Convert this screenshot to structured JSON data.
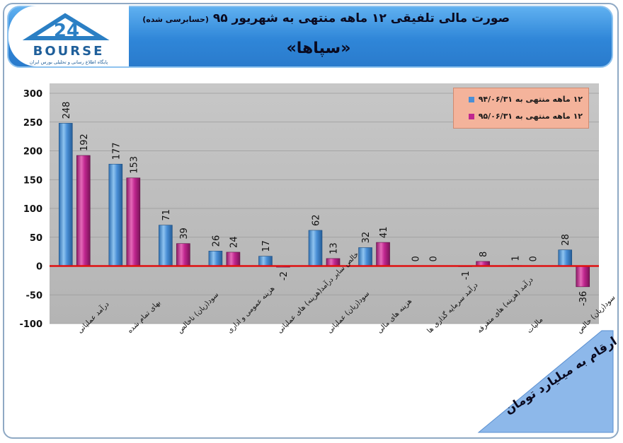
{
  "header": {
    "title": "صورت مالی تلفیقی ۱۲ ماهه منتهی به شهریور ۹۵",
    "title_note": "(حسابرسی شده)",
    "company": "«سپاها»",
    "logo_text": "BOURSE",
    "logo_subtitle": "پایگاه اطلاع رسانی و تحلیلی بورس ایران",
    "logo_number": "24",
    "bg_color": "#2f86d8"
  },
  "units_banner": "ارقام به میلیارد تومان",
  "chart_data": {
    "type": "bar",
    "categories": [
      "درآمد عملیاتی",
      "بهای تمام شده",
      "سود(زیان) ناخالص",
      "هزینه عمومی و اداری",
      "خالص سایر درآمد(هزینه) های عملیاتی",
      "سود(زیان) عملیاتی",
      "هزینه های مالی",
      "درآمد سرمایه گذاری ها",
      "درآمد (هزینه) های متفرقه",
      "مالیات",
      "سود(زیان) خالص"
    ],
    "series": [
      {
        "name": "۱۲ ماهه منتهی به ۹۴/۰۶/۳۱",
        "values": [
          248,
          177,
          71,
          26,
          17,
          62,
          32,
          0,
          -1,
          1,
          28
        ],
        "color": "#4a8fd6"
      },
      {
        "name": "۱۲ ماهه منتهی به ۹۵/۰۶/۳۱",
        "values": [
          192,
          153,
          39,
          24,
          -2,
          13,
          41,
          0,
          8,
          0,
          -36
        ],
        "color": "#c0268f"
      }
    ],
    "ylim": [
      -100,
      300
    ],
    "yticks": [
      300,
      250,
      200,
      150,
      100,
      50,
      0,
      -50,
      -100
    ],
    "ytick_labels": [
      "300",
      "250",
      "200",
      "150",
      "100",
      "50",
      "0",
      "-50",
      "-100"
    ],
    "data_labels": [
      [
        "248",
        "177",
        "71",
        "26",
        "17",
        "62",
        "32",
        "0",
        "-1",
        "1",
        "28"
      ],
      [
        "192",
        "153",
        "39",
        "24",
        "-2",
        "13",
        "41",
        "0",
        "8",
        "0",
        "-36"
      ]
    ],
    "zero_line_color": "#e01010",
    "legend_position": "top-right",
    "grid": true
  }
}
